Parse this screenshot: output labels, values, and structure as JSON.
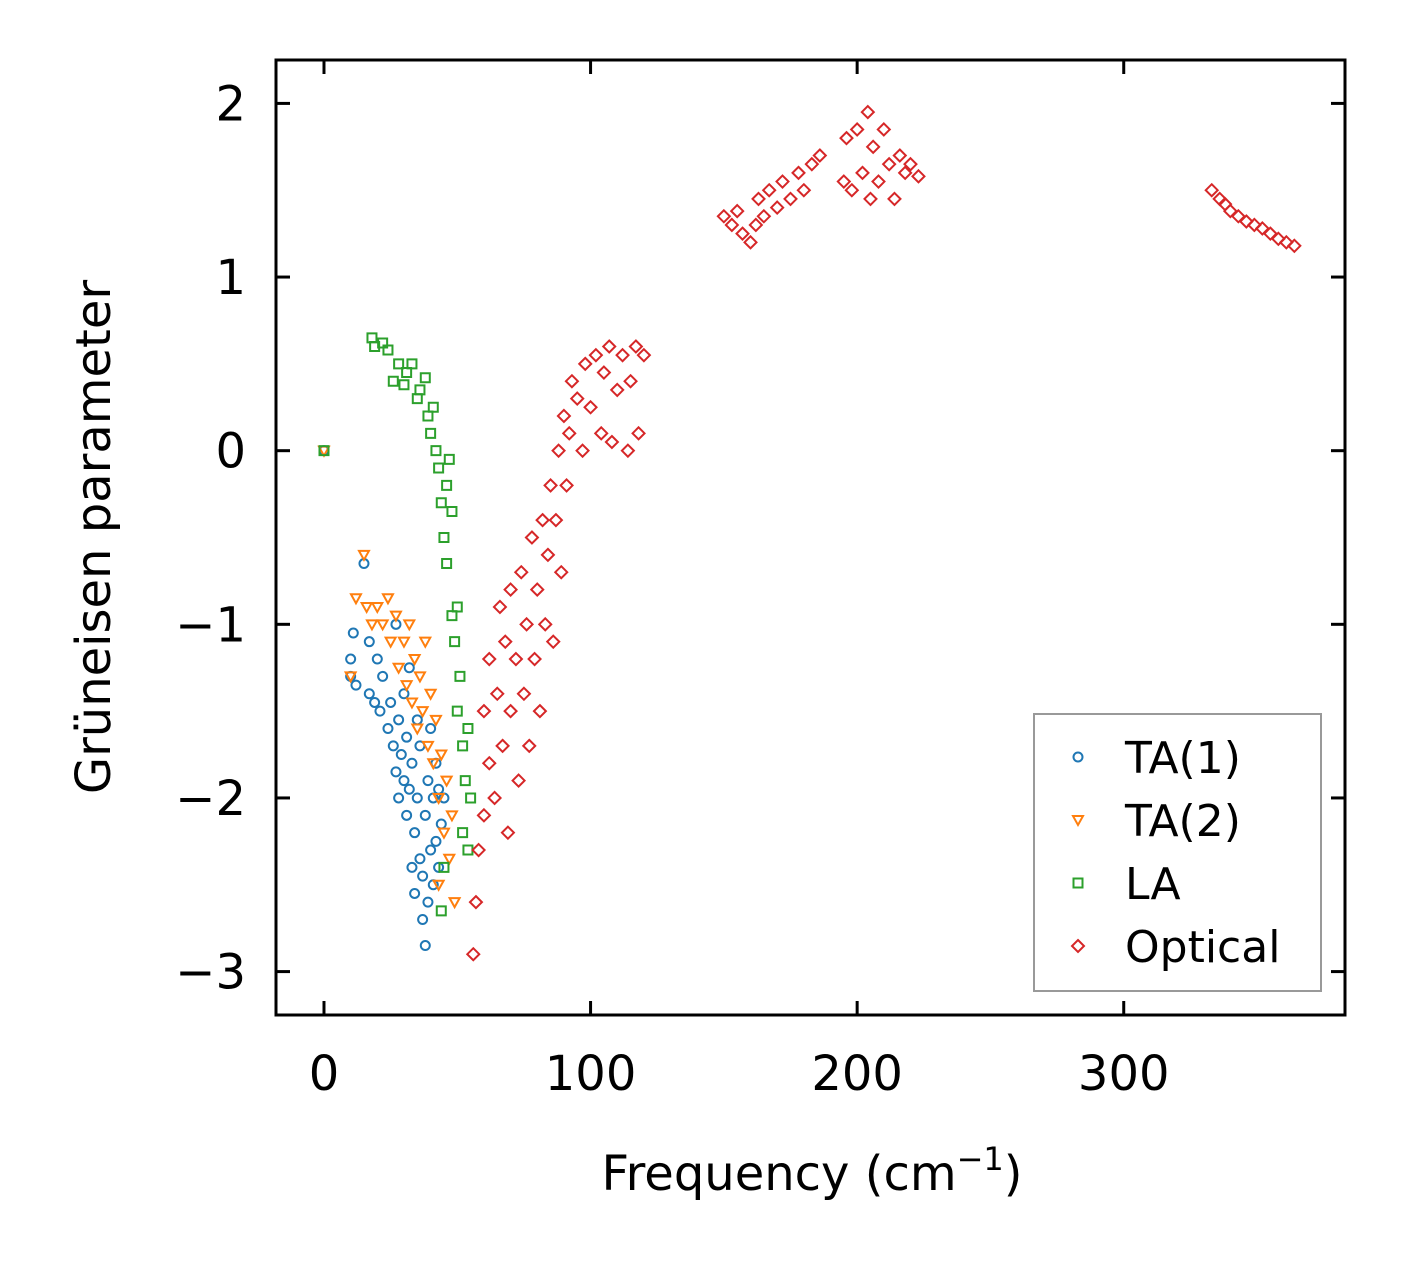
{
  "chart_data": {
    "type": "scatter",
    "title": "",
    "xlabel": "Frequency (cm",
    "xlabel_sup": "−1",
    "xlabel_end": ")",
    "ylabel": "Grüneisen parameter",
    "xlim": [
      -18,
      383
    ],
    "ylim": [
      -3.25,
      2.25
    ],
    "xticks": [
      0,
      100,
      200,
      300
    ],
    "xtick_labels": [
      "0",
      "100",
      "200",
      "300"
    ],
    "yticks": [
      2,
      1,
      0,
      -1,
      -2,
      -3
    ],
    "ytick_labels": [
      "2",
      "1",
      "0",
      "−1",
      "−2",
      "−3"
    ],
    "legend_position": "bottom-right",
    "series": [
      {
        "name": "TA(1)",
        "marker": "circle",
        "color": "#1f77b4",
        "points": [
          [
            0,
            0
          ],
          [
            10,
            -1.3
          ],
          [
            10,
            -1.2
          ],
          [
            11,
            -1.05
          ],
          [
            12,
            -1.35
          ],
          [
            15,
            -0.65
          ],
          [
            17,
            -1.4
          ],
          [
            17,
            -1.1
          ],
          [
            19,
            -1.45
          ],
          [
            20,
            -1.2
          ],
          [
            21,
            -1.5
          ],
          [
            22,
            -1.3
          ],
          [
            24,
            -1.6
          ],
          [
            25,
            -1.45
          ],
          [
            26,
            -1.7
          ],
          [
            27,
            -1.0
          ],
          [
            27,
            -1.85
          ],
          [
            28,
            -2.0
          ],
          [
            28,
            -1.55
          ],
          [
            29,
            -1.75
          ],
          [
            30,
            -1.9
          ],
          [
            30,
            -1.4
          ],
          [
            31,
            -2.1
          ],
          [
            31,
            -1.65
          ],
          [
            32,
            -1.25
          ],
          [
            32,
            -1.95
          ],
          [
            33,
            -2.4
          ],
          [
            33,
            -1.8
          ],
          [
            34,
            -2.55
          ],
          [
            34,
            -2.2
          ],
          [
            35,
            -1.55
          ],
          [
            35,
            -2.0
          ],
          [
            36,
            -2.35
          ],
          [
            36,
            -1.7
          ],
          [
            37,
            -2.7
          ],
          [
            37,
            -2.45
          ],
          [
            38,
            -2.85
          ],
          [
            38,
            -2.1
          ],
          [
            39,
            -1.9
          ],
          [
            39,
            -2.6
          ],
          [
            40,
            -2.3
          ],
          [
            40,
            -1.6
          ],
          [
            41,
            -2.5
          ],
          [
            41,
            -2.0
          ],
          [
            42,
            -1.8
          ],
          [
            42,
            -2.25
          ],
          [
            43,
            -1.95
          ],
          [
            43,
            -2.4
          ],
          [
            44,
            -2.15
          ],
          [
            45,
            -2.0
          ]
        ]
      },
      {
        "name": "TA(2)",
        "marker": "triangle-down",
        "color": "#ff7f0e",
        "points": [
          [
            0,
            0
          ],
          [
            10,
            -1.3
          ],
          [
            12,
            -0.85
          ],
          [
            15,
            -0.6
          ],
          [
            16,
            -0.9
          ],
          [
            18,
            -1.0
          ],
          [
            20,
            -0.9
          ],
          [
            22,
            -1.0
          ],
          [
            24,
            -0.85
          ],
          [
            25,
            -1.1
          ],
          [
            27,
            -0.95
          ],
          [
            28,
            -1.25
          ],
          [
            30,
            -1.1
          ],
          [
            31,
            -1.35
          ],
          [
            32,
            -1.0
          ],
          [
            33,
            -1.45
          ],
          [
            34,
            -1.2
          ],
          [
            35,
            -1.6
          ],
          [
            36,
            -1.3
          ],
          [
            37,
            -1.5
          ],
          [
            38,
            -1.1
          ],
          [
            39,
            -1.7
          ],
          [
            40,
            -1.4
          ],
          [
            41,
            -1.8
          ],
          [
            42,
            -1.55
          ],
          [
            43,
            -2.0
          ],
          [
            43,
            -2.5
          ],
          [
            44,
            -1.75
          ],
          [
            45,
            -2.2
          ],
          [
            46,
            -1.9
          ],
          [
            47,
            -2.35
          ],
          [
            48,
            -2.1
          ],
          [
            49,
            -2.6
          ]
        ]
      },
      {
        "name": "LA",
        "marker": "square",
        "color": "#2ca02c",
        "points": [
          [
            0,
            0
          ],
          [
            18,
            0.65
          ],
          [
            19,
            0.6
          ],
          [
            22,
            0.62
          ],
          [
            24,
            0.58
          ],
          [
            26,
            0.4
          ],
          [
            28,
            0.5
          ],
          [
            30,
            0.38
          ],
          [
            31,
            0.45
          ],
          [
            33,
            0.5
          ],
          [
            35,
            0.3
          ],
          [
            36,
            0.35
          ],
          [
            38,
            0.42
          ],
          [
            39,
            0.2
          ],
          [
            40,
            0.1
          ],
          [
            41,
            0.25
          ],
          [
            42,
            0.0
          ],
          [
            43,
            -0.1
          ],
          [
            44,
            -0.3
          ],
          [
            45,
            -0.5
          ],
          [
            46,
            -0.2
          ],
          [
            46,
            -0.65
          ],
          [
            47,
            -0.05
          ],
          [
            48,
            -0.35
          ],
          [
            48,
            -0.95
          ],
          [
            49,
            -1.1
          ],
          [
            50,
            -0.9
          ],
          [
            50,
            -1.5
          ],
          [
            51,
            -1.3
          ],
          [
            52,
            -1.7
          ],
          [
            52,
            -2.2
          ],
          [
            53,
            -1.9
          ],
          [
            54,
            -1.6
          ],
          [
            54,
            -2.3
          ],
          [
            55,
            -2.0
          ],
          [
            45,
            -2.4
          ],
          [
            44,
            -2.65
          ]
        ]
      },
      {
        "name": "Optical",
        "marker": "diamond",
        "color": "#d62728",
        "points": [
          [
            56,
            -2.9
          ],
          [
            57,
            -2.6
          ],
          [
            58,
            -2.3
          ],
          [
            60,
            -2.1
          ],
          [
            60,
            -1.5
          ],
          [
            62,
            -1.8
          ],
          [
            62,
            -1.2
          ],
          [
            64,
            -2.0
          ],
          [
            65,
            -1.4
          ],
          [
            66,
            -0.9
          ],
          [
            67,
            -1.7
          ],
          [
            68,
            -1.1
          ],
          [
            69,
            -2.2
          ],
          [
            70,
            -1.5
          ],
          [
            70,
            -0.8
          ],
          [
            72,
            -1.2
          ],
          [
            73,
            -1.9
          ],
          [
            74,
            -0.7
          ],
          [
            75,
            -1.4
          ],
          [
            76,
            -1.0
          ],
          [
            77,
            -1.7
          ],
          [
            78,
            -0.5
          ],
          [
            79,
            -1.2
          ],
          [
            80,
            -0.8
          ],
          [
            81,
            -1.5
          ],
          [
            82,
            -0.4
          ],
          [
            83,
            -1.0
          ],
          [
            84,
            -0.6
          ],
          [
            85,
            -0.2
          ],
          [
            86,
            -1.1
          ],
          [
            87,
            -0.4
          ],
          [
            88,
            0.0
          ],
          [
            89,
            -0.7
          ],
          [
            90,
            0.2
          ],
          [
            91,
            -0.2
          ],
          [
            92,
            0.1
          ],
          [
            93,
            0.4
          ],
          [
            95,
            0.3
          ],
          [
            97,
            0.0
          ],
          [
            98,
            0.5
          ],
          [
            100,
            0.25
          ],
          [
            102,
            0.55
          ],
          [
            104,
            0.1
          ],
          [
            105,
            0.45
          ],
          [
            107,
            0.6
          ],
          [
            108,
            0.05
          ],
          [
            110,
            0.35
          ],
          [
            112,
            0.55
          ],
          [
            114,
            0.0
          ],
          [
            115,
            0.4
          ],
          [
            117,
            0.6
          ],
          [
            118,
            0.1
          ],
          [
            120,
            0.55
          ],
          [
            150,
            1.35
          ],
          [
            153,
            1.3
          ],
          [
            155,
            1.38
          ],
          [
            157,
            1.25
          ],
          [
            160,
            1.2
          ],
          [
            162,
            1.3
          ],
          [
            163,
            1.45
          ],
          [
            165,
            1.35
          ],
          [
            167,
            1.5
          ],
          [
            170,
            1.4
          ],
          [
            172,
            1.55
          ],
          [
            175,
            1.45
          ],
          [
            178,
            1.6
          ],
          [
            180,
            1.5
          ],
          [
            183,
            1.65
          ],
          [
            186,
            1.7
          ],
          [
            195,
            1.55
          ],
          [
            196,
            1.8
          ],
          [
            198,
            1.5
          ],
          [
            200,
            1.85
          ],
          [
            202,
            1.6
          ],
          [
            204,
            1.95
          ],
          [
            205,
            1.45
          ],
          [
            206,
            1.75
          ],
          [
            208,
            1.55
          ],
          [
            210,
            1.85
          ],
          [
            212,
            1.65
          ],
          [
            214,
            1.45
          ],
          [
            216,
            1.7
          ],
          [
            218,
            1.6
          ],
          [
            220,
            1.65
          ],
          [
            223,
            1.58
          ],
          [
            333,
            1.5
          ],
          [
            336,
            1.45
          ],
          [
            338,
            1.42
          ],
          [
            340,
            1.38
          ],
          [
            343,
            1.35
          ],
          [
            346,
            1.32
          ],
          [
            349,
            1.3
          ],
          [
            352,
            1.28
          ],
          [
            355,
            1.25
          ],
          [
            358,
            1.22
          ],
          [
            361,
            1.2
          ],
          [
            364,
            1.18
          ]
        ]
      }
    ]
  }
}
